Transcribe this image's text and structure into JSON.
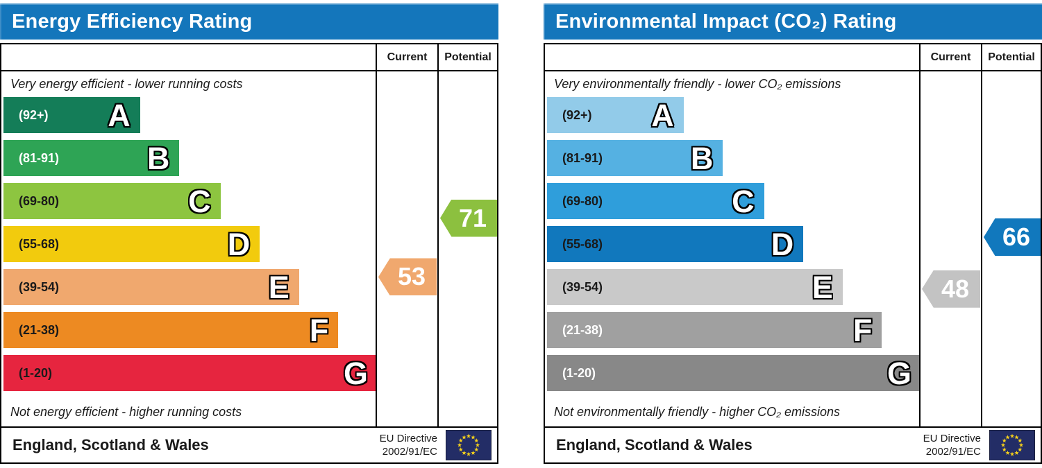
{
  "chart_data": [
    {
      "type": "bar",
      "title": "Energy Efficiency Rating",
      "top_caption": "Very energy efficient - lower running costs",
      "bottom_caption": "Not energy efficient - higher running costs",
      "columns": {
        "current_label": "Current",
        "potential_label": "Potential"
      },
      "bands": [
        {
          "letter": "A",
          "range_label": "(92+)",
          "min": 92,
          "max": 100,
          "color": "#147d58",
          "text_color": "#ffffff",
          "width_pct": 36.5
        },
        {
          "letter": "B",
          "range_label": "(81-91)",
          "min": 81,
          "max": 91,
          "color": "#2ea455",
          "text_color": "#ffffff",
          "width_pct": 47
        },
        {
          "letter": "C",
          "range_label": "(69-80)",
          "min": 69,
          "max": 80,
          "color": "#8dc540",
          "text_color": "#1a1a1a",
          "width_pct": 58
        },
        {
          "letter": "D",
          "range_label": "(55-68)",
          "min": 55,
          "max": 68,
          "color": "#f2cb0d",
          "text_color": "#1a1a1a",
          "width_pct": 68.5
        },
        {
          "letter": "E",
          "range_label": "(39-54)",
          "min": 39,
          "max": 54,
          "color": "#f0a86e",
          "text_color": "#1a1a1a",
          "width_pct": 79
        },
        {
          "letter": "F",
          "range_label": "(21-38)",
          "min": 21,
          "max": 38,
          "color": "#ed8a22",
          "text_color": "#1a1a1a",
          "width_pct": 89.5
        },
        {
          "letter": "G",
          "range_label": "(1-20)",
          "min": 1,
          "max": 20,
          "color": "#e6253f",
          "text_color": "#1a1a1a",
          "width_pct": 100
        }
      ],
      "current": {
        "value": 53,
        "band": "E",
        "color": "#f0a86e"
      },
      "potential": {
        "value": 71,
        "band": "C",
        "color": "#8cc03f"
      },
      "footer": {
        "region": "England, Scotland & Wales",
        "directive_line1": "EU Directive",
        "directive_line2": "2002/91/EC",
        "flag_icon": "eu-flag"
      }
    },
    {
      "type": "bar",
      "title": "Environmental Impact (CO₂) Rating",
      "top_caption": "Very environmentally friendly - lower CO₂ emissions",
      "bottom_caption": "Not environmentally friendly - higher CO₂ emissions",
      "columns": {
        "current_label": "Current",
        "potential_label": "Potential"
      },
      "bands": [
        {
          "letter": "A",
          "range_label": "(92+)",
          "min": 92,
          "max": 100,
          "color": "#92cbe9",
          "text_color": "#1a1a1a",
          "width_pct": 36.5
        },
        {
          "letter": "B",
          "range_label": "(81-91)",
          "min": 81,
          "max": 91,
          "color": "#55b1e2",
          "text_color": "#1a1a1a",
          "width_pct": 47
        },
        {
          "letter": "C",
          "range_label": "(69-80)",
          "min": 69,
          "max": 80,
          "color": "#2f9edb",
          "text_color": "#1a1a1a",
          "width_pct": 58
        },
        {
          "letter": "D",
          "range_label": "(55-68)",
          "min": 55,
          "max": 68,
          "color": "#1178bd",
          "text_color": "#1a1a1a",
          "width_pct": 68.5
        },
        {
          "letter": "E",
          "range_label": "(39-54)",
          "min": 39,
          "max": 54,
          "color": "#c9c9c9",
          "text_color": "#1a1a1a",
          "width_pct": 79
        },
        {
          "letter": "F",
          "range_label": "(21-38)",
          "min": 21,
          "max": 38,
          "color": "#a0a0a0",
          "text_color": "#ffffff",
          "width_pct": 89.5
        },
        {
          "letter": "G",
          "range_label": "(1-20)",
          "min": 1,
          "max": 20,
          "color": "#888888",
          "text_color": "#ffffff",
          "width_pct": 100
        }
      ],
      "current": {
        "value": 48,
        "band": "E",
        "color": "#c3c3c3"
      },
      "potential": {
        "value": 66,
        "band": "D",
        "color": "#1178bd"
      },
      "footer": {
        "region": "England, Scotland & Wales",
        "directive_line1": "EU Directive",
        "directive_line2": "2002/91/EC",
        "flag_icon": "eu-flag"
      }
    }
  ]
}
